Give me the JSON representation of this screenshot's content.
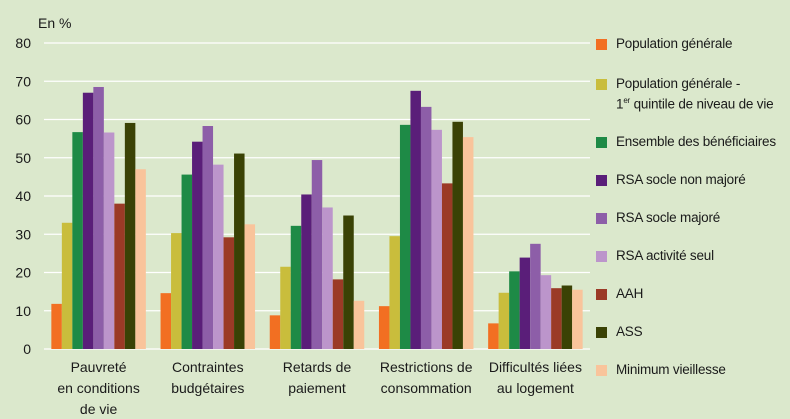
{
  "chart_data": {
    "type": "bar",
    "ylabel": "En %",
    "ylim": [
      0,
      80
    ],
    "yticks": [
      0,
      10,
      20,
      30,
      40,
      50,
      60,
      70,
      80
    ],
    "grid": true,
    "legend_position": "right",
    "categories": [
      [
        "Pauvreté",
        "en conditions",
        "de vie"
      ],
      [
        "Contraintes",
        "budgétaires"
      ],
      [
        "Retards de",
        "paiement"
      ],
      [
        "Restrictions de",
        "consommation"
      ],
      [
        "Difficultés liées",
        "au logement"
      ]
    ],
    "series": [
      {
        "name": "Population générale",
        "color": "#f26f22",
        "values": [
          11.8,
          14.6,
          8.8,
          11.2,
          6.7
        ]
      },
      {
        "name": "Population générale -",
        "name_line2_prefix": "1",
        "name_line2_sup": "er",
        "name_line2_suffix": " quintile de niveau de vie",
        "color": "#c9bd3c",
        "values": [
          33.0,
          30.3,
          21.5,
          29.5,
          14.7
        ]
      },
      {
        "name": "Ensemble des bénéficiaires",
        "color": "#1e8a46",
        "values": [
          56.7,
          45.6,
          32.2,
          58.6,
          20.3
        ]
      },
      {
        "name": "RSA socle non majoré",
        "color": "#5a1e79",
        "values": [
          67.0,
          54.2,
          40.4,
          67.5,
          23.9
        ]
      },
      {
        "name": "RSA socle majoré",
        "color": "#8d5ea8",
        "values": [
          68.5,
          58.3,
          49.4,
          63.3,
          27.5
        ]
      },
      {
        "name": "RSA activité seul",
        "color": "#bc95cb",
        "values": [
          56.6,
          48.2,
          37.0,
          57.3,
          19.3
        ]
      },
      {
        "name": "AAH",
        "color": "#9b3a26",
        "values": [
          38.0,
          29.2,
          18.2,
          43.3,
          15.9
        ]
      },
      {
        "name": "ASS",
        "color": "#3a4205",
        "values": [
          59.1,
          51.1,
          34.9,
          59.4,
          16.6
        ]
      },
      {
        "name": "Minimum vieillesse",
        "color": "#f9c49b",
        "values": [
          47.0,
          32.6,
          12.6,
          55.4,
          15.5
        ]
      }
    ]
  }
}
